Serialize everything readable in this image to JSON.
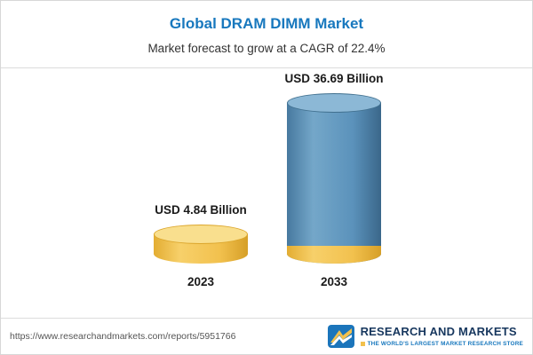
{
  "header": {
    "title": "Global DRAM DIMM Market",
    "subtitle": "Market forecast to grow at a CAGR of 22.4%"
  },
  "chart_data": {
    "type": "bar",
    "categories": [
      "2023",
      "2033"
    ],
    "values": [
      4.84,
      36.69
    ],
    "value_labels": [
      "USD 4.84 Billion",
      "USD 36.69 Billion"
    ],
    "unit": "USD Billion",
    "title": "Global DRAM DIMM Market",
    "subtitle": "Market forecast to grow at a CAGR of 22.4%",
    "bar_colors": [
      "#f2c14e",
      "#5b92bb"
    ],
    "accent_colors": {
      "gold": "#f2c14e",
      "blue": "#5b92bb",
      "title_blue": "#1878be"
    },
    "ylim": [
      0,
      40
    ],
    "legend": "none",
    "grid": false
  },
  "footer": {
    "url": "https://www.researchandmarkets.com/reports/5951766",
    "logo_name": "RESEARCH AND MARKETS",
    "logo_tagline": "THE WORLD'S LARGEST MARKET RESEARCH STORE"
  }
}
